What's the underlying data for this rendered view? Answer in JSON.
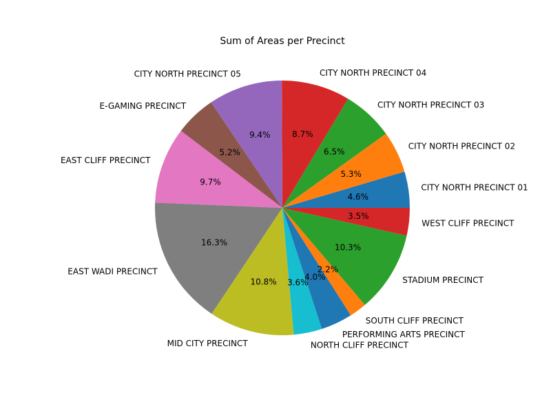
{
  "chart_data": {
    "type": "pie",
    "title": "Sum of Areas per Precinct",
    "start_angle": 0,
    "direction": "counterclockwise",
    "legend": "none",
    "slices": [
      {
        "label": "CITY NORTH PRECINCT 01",
        "value": 4.6,
        "pct_label": "4.6%",
        "color": "#1f77b4"
      },
      {
        "label": "CITY NORTH PRECINCT 02",
        "value": 5.3,
        "pct_label": "5.3%",
        "color": "#ff7f0e"
      },
      {
        "label": "CITY NORTH PRECINCT 03",
        "value": 6.5,
        "pct_label": "6.5%",
        "color": "#2ca02c"
      },
      {
        "label": "CITY NORTH PRECINCT 04",
        "value": 8.7,
        "pct_label": "8.7%",
        "color": "#d62728"
      },
      {
        "label": "CITY NORTH PRECINCT 05",
        "value": 9.4,
        "pct_label": "9.4%",
        "color": "#9467bd"
      },
      {
        "label": "E-GAMING PRECINCT",
        "value": 5.2,
        "pct_label": "5.2%",
        "color": "#8c564b"
      },
      {
        "label": "EAST CLIFF PRECINCT",
        "value": 9.7,
        "pct_label": "9.7%",
        "color": "#e377c2"
      },
      {
        "label": "EAST WADI PRECINCT",
        "value": 16.3,
        "pct_label": "16.3%",
        "color": "#7f7f7f"
      },
      {
        "label": "MID CITY PRECINCT",
        "value": 10.8,
        "pct_label": "10.8%",
        "color": "#bcbd22"
      },
      {
        "label": "NORTH CLIFF PRECINCT",
        "value": 3.6,
        "pct_label": "3.6%",
        "color": "#17becf"
      },
      {
        "label": "PERFORMING ARTS PRECINCT",
        "value": 4.0,
        "pct_label": "4.0%",
        "color": "#1f77b4"
      },
      {
        "label": "SOUTH CLIFF PRECINCT",
        "value": 2.2,
        "pct_label": "2.2%",
        "color": "#ff7f0e"
      },
      {
        "label": "STADIUM PRECINCT",
        "value": 10.3,
        "pct_label": "10.3%",
        "color": "#2ca02c"
      },
      {
        "label": "WEST CLIFF PRECINCT",
        "value": 3.5,
        "pct_label": "3.5%",
        "color": "#d62728"
      }
    ]
  }
}
